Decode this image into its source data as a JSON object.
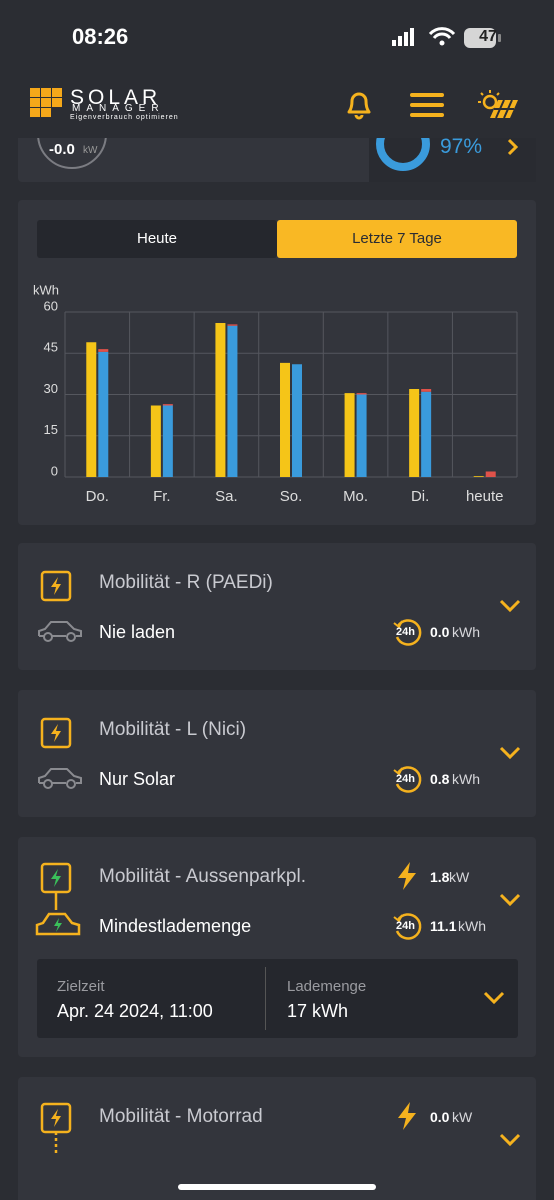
{
  "status_bar": {
    "time": "08:26",
    "battery": "47"
  },
  "header": {
    "logo_title": "SOLAR",
    "logo_subtitle": "MANAGER",
    "logo_tagline": "Eigenverbrauch optimieren"
  },
  "summary": {
    "power": "-0.0",
    "power_unit": "kW",
    "percent": "97%"
  },
  "tabs": [
    "Heute",
    "Letzte 7 Tage"
  ],
  "chart_data": {
    "type": "bar",
    "y_label": "kWh",
    "categories": [
      "Do.",
      "Fr.",
      "Sa.",
      "So.",
      "Mo.",
      "Di.",
      "heute"
    ],
    "series": [
      {
        "color": "#f5c518",
        "stack": "a",
        "values": [
          49,
          26,
          56,
          41.5,
          30.5,
          32,
          0.3
        ]
      },
      {
        "color": "#3a9bdc",
        "stack": "b",
        "values": [
          45.5,
          26,
          55,
          41,
          30,
          31,
          0
        ]
      },
      {
        "color": "#e0524a",
        "stack": "b",
        "values": [
          1,
          0.5,
          0.5,
          0,
          0.5,
          1,
          2
        ]
      }
    ],
    "ylim": [
      0,
      60
    ],
    "yticks": [
      0,
      15,
      30,
      45,
      60
    ],
    "grid": true
  },
  "cards": [
    {
      "title": "Mobilität - R (PAEDi)",
      "mode": "Nie laden",
      "energy_badge": "24h",
      "energy": "0.0",
      "energy_unit": "kWh"
    },
    {
      "title": "Mobilität - L (Nici)",
      "mode": "Nur Solar",
      "energy_badge": "24h",
      "energy": "0.8",
      "energy_unit": "kWh"
    },
    {
      "title": "Mobilität - Aussenparkpl.",
      "power": "1.8",
      "power_unit": "kW",
      "mode": "Mindestlademenge",
      "energy_badge": "24h",
      "energy": "11.1",
      "energy_unit": "kWh",
      "target_time_label": "Zielzeit",
      "target_time": "Apr. 24 2024, 11:00",
      "amount_label": "Lademenge",
      "amount": "17 kWh"
    },
    {
      "title": "Mobilität - Motorrad",
      "power": "0.0",
      "power_unit": "kW"
    }
  ]
}
